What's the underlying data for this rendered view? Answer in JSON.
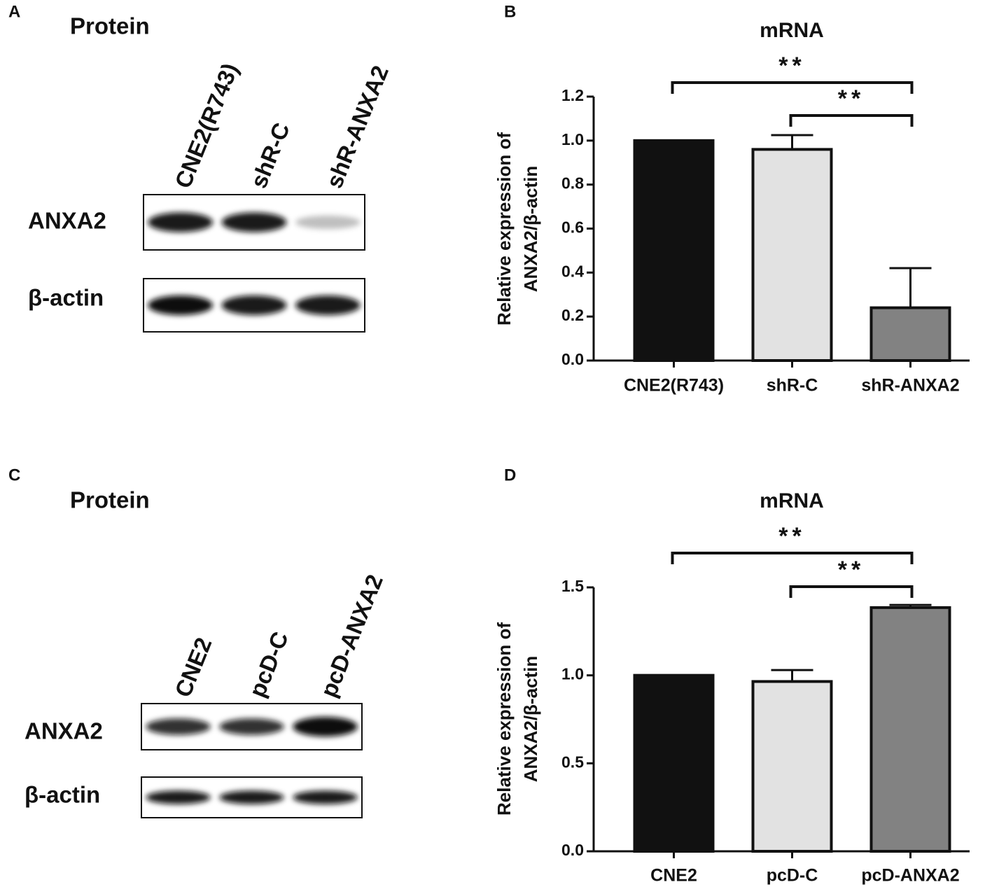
{
  "blots": [
    {
      "panel": "A",
      "title": "Protein",
      "lanes": [
        "CNE2(R743)",
        "shR-C",
        "shR-ANXA2"
      ],
      "rows": [
        "ANXA2",
        "β-actin"
      ]
    },
    {
      "panel": "C",
      "title": "Protein",
      "lanes": [
        "CNE2",
        "pcD-C",
        "pcD-ANXA2"
      ],
      "rows": [
        "ANXA2",
        "β-actin"
      ]
    }
  ],
  "chart_data": [
    {
      "type": "bar",
      "panel": "B",
      "title": "mRNA",
      "ylabel": [
        "Relative expression of",
        "ANXA2/β-actin"
      ],
      "categories": [
        "CNE2(R743)",
        "shR-C",
        "shR-ANXA2"
      ],
      "values": [
        1.0,
        0.96,
        0.24
      ],
      "errors": [
        null,
        0.065,
        0.18
      ],
      "colors": [
        "#111111",
        "#e2e2e2",
        "#828282"
      ],
      "ylim": [
        0,
        1.2
      ],
      "yticks": [
        {
          "value": 0,
          "label": "0.0"
        },
        0.2,
        0.4,
        0.6,
        0.8,
        {
          "value": 1,
          "label": "1.0"
        },
        1.2
      ],
      "significance": [
        "**",
        "**"
      ]
    },
    {
      "type": "bar",
      "panel": "D",
      "title": "mRNA",
      "ylabel": [
        "Relative expression of",
        "ANXA2/β-actin"
      ],
      "categories": [
        "CNE2",
        "pcD-C",
        "pcD-ANXA2"
      ],
      "values": [
        1.0,
        0.965,
        1.385
      ],
      "errors": [
        null,
        0.065,
        0.015
      ],
      "colors": [
        "#111111",
        "#e2e2e2",
        "#828282"
      ],
      "ylim": [
        0,
        1.5
      ],
      "yticks": [
        {
          "value": 0,
          "label": "0.0"
        },
        0.5,
        {
          "value": 1,
          "label": "1.0"
        },
        {
          "value": 1.5,
          "label": "1.5"
        }
      ],
      "significance": [
        "**",
        "**"
      ]
    }
  ]
}
